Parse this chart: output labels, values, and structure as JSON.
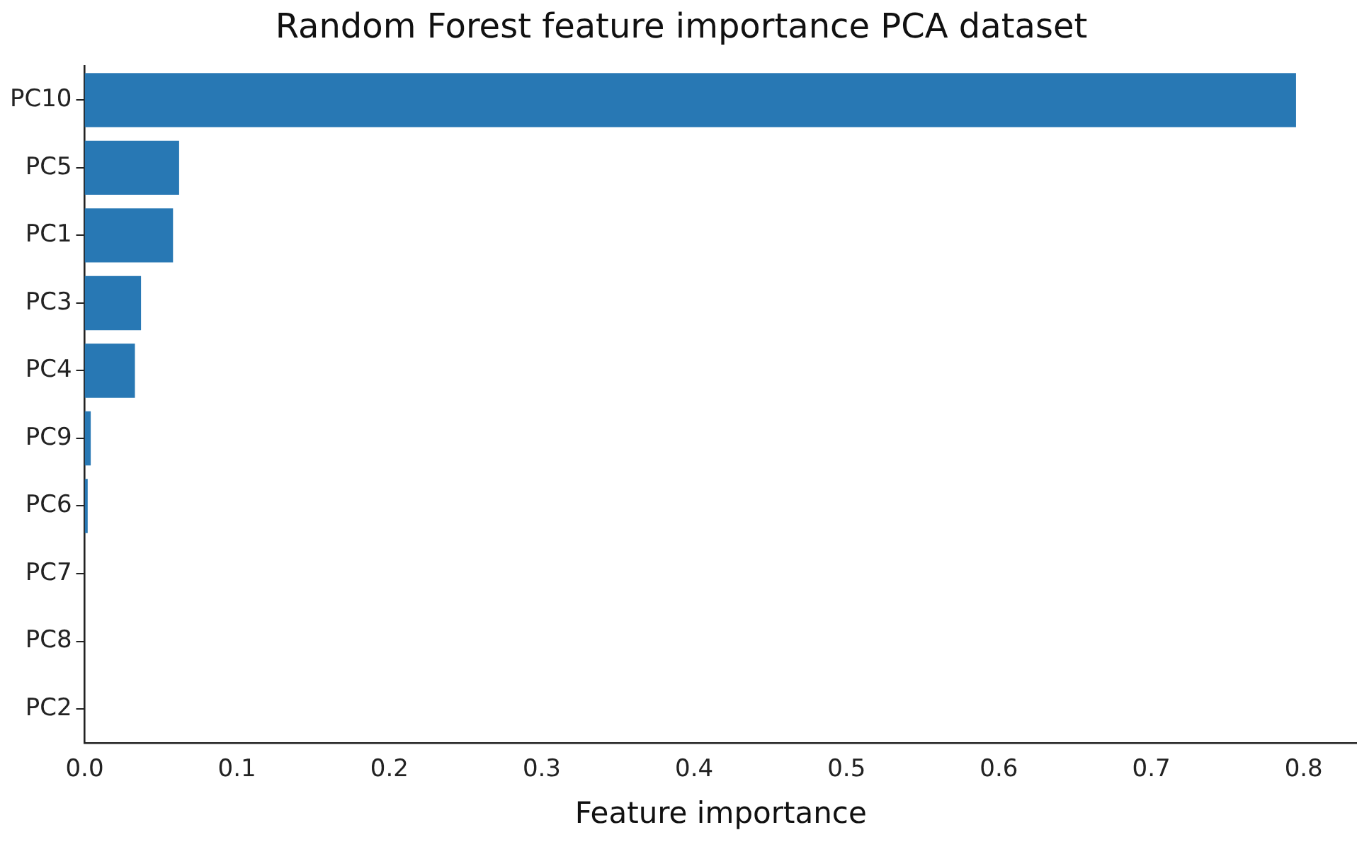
{
  "chart_data": {
    "type": "bar",
    "orientation": "horizontal",
    "title": "Random Forest feature importance PCA dataset",
    "xlabel": "Feature importance",
    "categories": [
      "PC10",
      "PC5",
      "PC1",
      "PC3",
      "PC4",
      "PC9",
      "PC6",
      "PC7",
      "PC8",
      "PC2"
    ],
    "values": [
      0.795,
      0.062,
      0.058,
      0.037,
      0.033,
      0.004,
      0.002,
      0,
      0,
      0
    ],
    "color": "#2878b4",
    "xlim": [
      0,
      0.835
    ],
    "xticks": [
      {
        "value": 0,
        "label": "0.0"
      },
      0.1,
      0.2,
      0.3,
      0.4,
      0.5,
      0.6,
      0.7,
      0.8
    ],
    "grid": false,
    "legend": false
  }
}
